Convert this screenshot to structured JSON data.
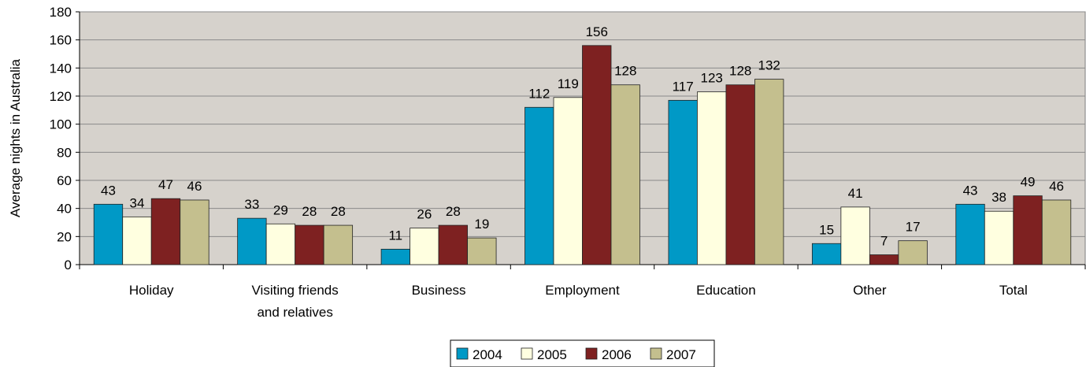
{
  "chart_data": {
    "type": "bar",
    "title": "",
    "xlabel": "",
    "ylabel": "Average nights in Australia",
    "ylim": [
      0,
      180
    ],
    "yticks": [
      0,
      20,
      40,
      60,
      80,
      100,
      120,
      140,
      160,
      180
    ],
    "grid": true,
    "legend_position": "bottom",
    "categories": [
      [
        "Holiday"
      ],
      [
        "Visiting friends",
        "and relatives"
      ],
      [
        "Business"
      ],
      [
        "Employment"
      ],
      [
        "Education"
      ],
      [
        "Other"
      ],
      [
        "Total"
      ]
    ],
    "series": [
      {
        "name": "2004",
        "color": "#0099c6",
        "values": [
          43,
          33,
          11,
          112,
          117,
          15,
          43
        ]
      },
      {
        "name": "2005",
        "color": "#ffffe0",
        "values": [
          34,
          29,
          26,
          119,
          123,
          41,
          38
        ]
      },
      {
        "name": "2006",
        "color": "#7e2121",
        "values": [
          47,
          28,
          28,
          156,
          128,
          7,
          49
        ]
      },
      {
        "name": "2007",
        "color": "#c4bf8e",
        "values": [
          46,
          28,
          19,
          128,
          132,
          17,
          46
        ]
      }
    ],
    "plot_background": "#d6d2cc",
    "gridline_color": "#8a8a8a"
  }
}
